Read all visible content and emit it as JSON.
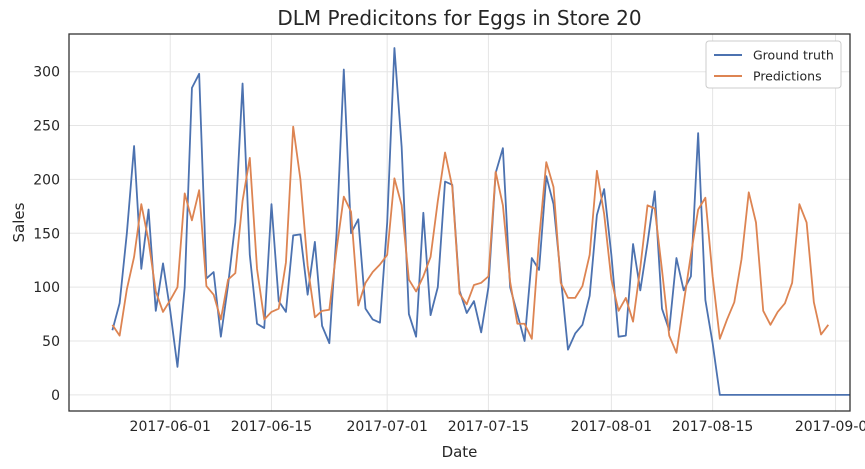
{
  "chart_data": {
    "type": "line",
    "title": "DLM Predicitons for Eggs in Store 20",
    "xlabel": "Date",
    "ylabel": "Sales",
    "x_start": "2017-05-24",
    "x_step_days": 1,
    "xlim": [
      "2017-05-18",
      "2017-09-03"
    ],
    "ylim": [
      -15,
      335
    ],
    "x_ticks": [
      {
        "date": "2017-06-01",
        "label": "2017-06-01"
      },
      {
        "date": "2017-06-15",
        "label": "2017-06-15"
      },
      {
        "date": "2017-07-01",
        "label": "2017-07-01"
      },
      {
        "date": "2017-07-15",
        "label": "2017-07-15"
      },
      {
        "date": "2017-08-01",
        "label": "2017-08-01"
      },
      {
        "date": "2017-08-15",
        "label": "2017-08-15"
      },
      {
        "date": "2017-09-01",
        "label": "2017-09-01"
      }
    ],
    "y_ticks": [
      0,
      50,
      100,
      150,
      200,
      250,
      300
    ],
    "grid": true,
    "legend_position": "top-right",
    "colors": {
      "ground_truth": "#4c72b0",
      "predictions": "#dd8452",
      "grid": "#e5e5e5",
      "axes": "#333333"
    },
    "series": [
      {
        "name": "Ground truth",
        "color": "#4c72b0",
        "values": [
          60,
          85,
          150,
          231,
          117,
          172,
          78,
          122,
          78,
          26,
          100,
          285,
          298,
          108,
          114,
          54,
          102,
          160,
          289,
          130,
          66,
          62,
          177,
          87,
          77,
          148,
          149,
          93,
          142,
          64,
          48,
          150,
          302,
          150,
          163,
          80,
          70,
          67,
          160,
          322,
          230,
          75,
          54,
          169,
          74,
          100,
          198,
          195,
          97,
          76,
          87,
          58,
          100,
          206,
          229,
          100,
          75,
          50,
          127,
          116,
          203,
          177,
          110,
          42,
          57,
          65,
          92,
          167,
          191,
          130,
          54,
          55,
          140,
          97,
          141,
          189,
          80,
          60,
          127,
          97,
          110,
          243,
          88,
          48,
          0,
          0,
          0,
          0,
          0,
          0,
          0,
          0,
          0,
          0,
          0,
          0,
          0,
          0,
          0,
          0,
          0,
          0,
          0
        ]
      },
      {
        "name": "Predictions",
        "color": "#dd8452",
        "values": [
          65,
          55,
          98,
          128,
          177,
          143,
          96,
          77,
          88,
          100,
          187,
          162,
          190,
          101,
          93,
          70,
          107,
          113,
          180,
          220,
          117,
          70,
          77,
          80,
          123,
          249,
          200,
          120,
          72,
          78,
          79,
          135,
          184,
          170,
          83,
          104,
          114,
          121,
          130,
          201,
          176,
          107,
          96,
          110,
          128,
          180,
          225,
          193,
          94,
          84,
          102,
          104,
          110,
          207,
          176,
          105,
          66,
          66,
          52,
          144,
          216,
          193,
          104,
          90,
          90,
          101,
          130,
          208,
          168,
          107,
          78,
          90,
          68,
          118,
          176,
          173,
          116,
          55,
          39,
          85,
          130,
          172,
          183,
          110,
          52,
          70,
          86,
          126,
          188,
          160,
          78,
          65,
          77,
          85,
          104,
          177,
          160,
          86,
          56,
          65
        ]
      }
    ]
  }
}
